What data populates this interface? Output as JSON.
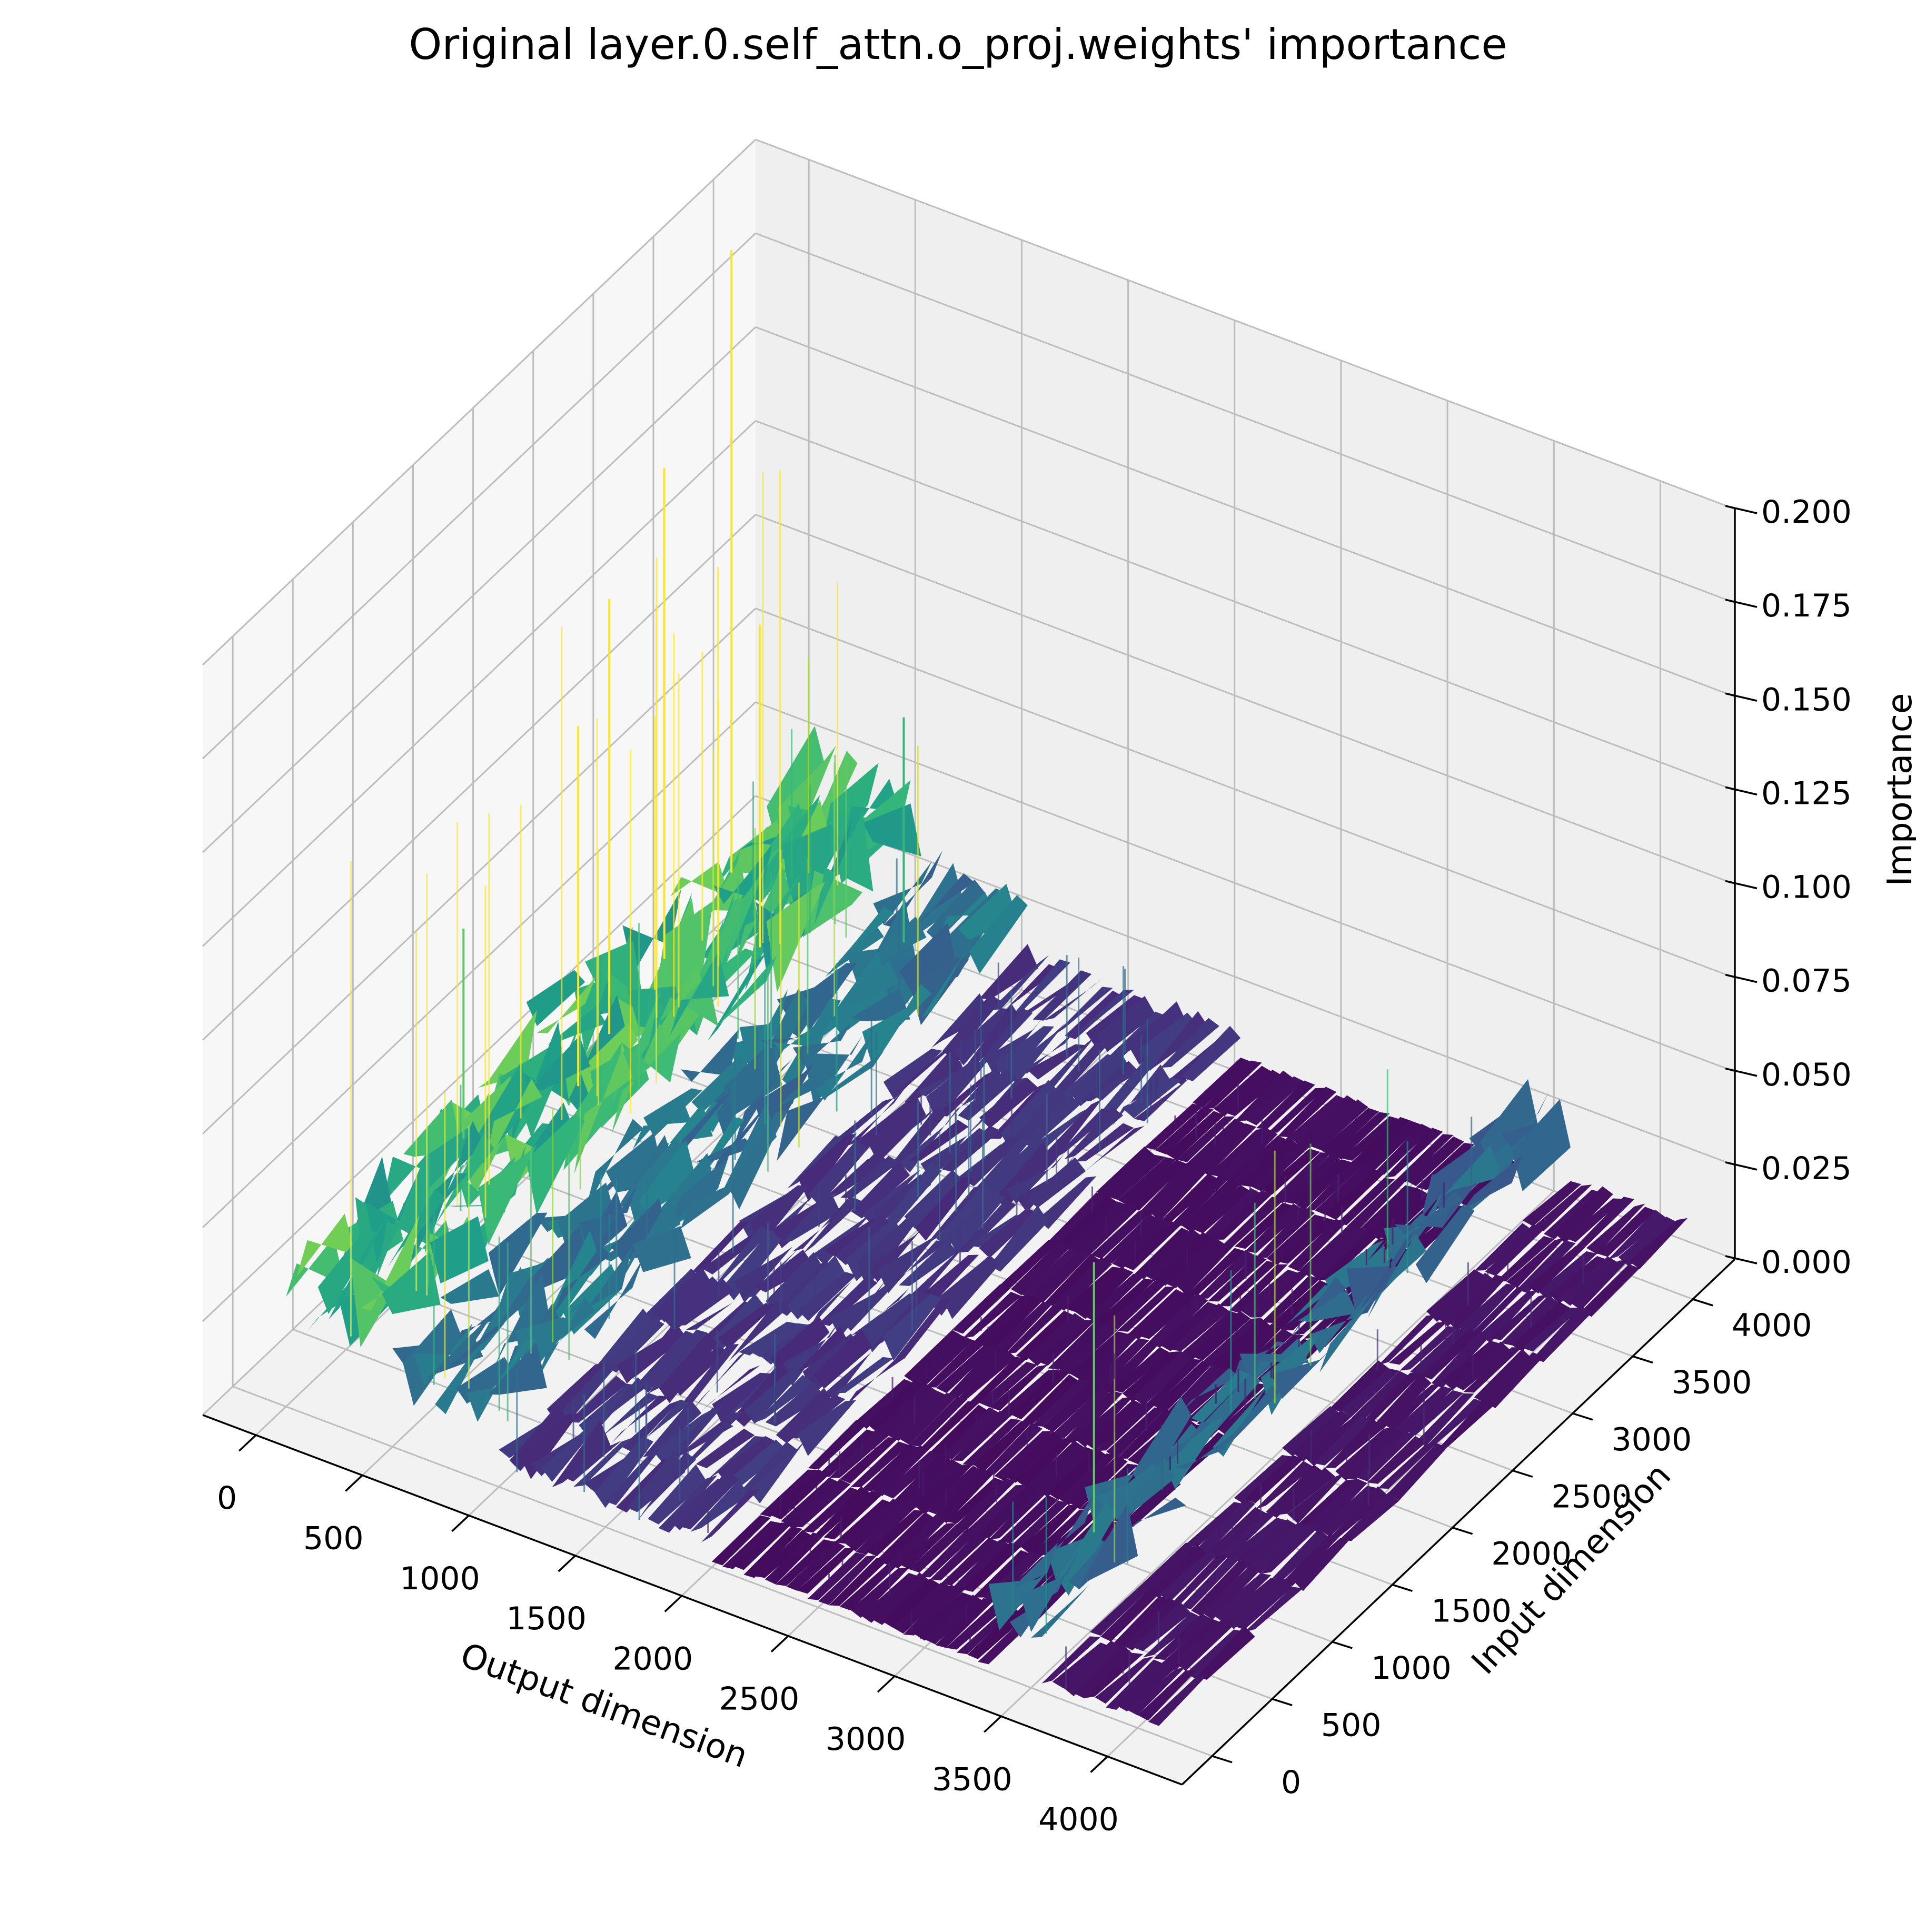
{
  "chart_data": {
    "type": "surface",
    "title": "Original layer.0.self_attn.o_proj.weights' importance",
    "xlabel": "Output dimension",
    "ylabel": "Input dimension",
    "zlabel": "Importance",
    "xlim": [
      -250,
      4350
    ],
    "ylim": [
      -250,
      4350
    ],
    "zlim": [
      0,
      0.2
    ],
    "xticks": [
      0,
      500,
      1000,
      1500,
      2000,
      2500,
      3000,
      3500,
      4000
    ],
    "yticks": [
      0,
      500,
      1000,
      1500,
      2000,
      2500,
      3000,
      3500,
      4000
    ],
    "zticks": [
      "0.000",
      "0.025",
      "0.050",
      "0.075",
      "0.100",
      "0.125",
      "0.150",
      "0.175",
      "0.200"
    ],
    "colormap": "viridis",
    "grid": true,
    "bands": [
      {
        "x": [
          0,
          500
        ],
        "level": 0.034
      },
      {
        "x": [
          500,
          1000
        ],
        "level": 0.02
      },
      {
        "x": [
          1000,
          2000
        ],
        "level": 0.008
      },
      {
        "x": [
          2000,
          3300
        ],
        "level": 0.002
      },
      {
        "x": [
          3300,
          3550
        ],
        "level": 0.018
      },
      {
        "x": [
          3550,
          4100
        ],
        "level": 0.003
      }
    ],
    "peaks": [
      {
        "x": 60,
        "y": 3600,
        "z": 0.2
      },
      {
        "x": 140,
        "y": 2900,
        "z": 0.165
      },
      {
        "x": 220,
        "y": 2300,
        "z": 0.15
      },
      {
        "x": 300,
        "y": 1900,
        "z": 0.13
      },
      {
        "x": 420,
        "y": 3200,
        "z": 0.12
      },
      {
        "x": 100,
        "y": 1300,
        "z": 0.09
      },
      {
        "x": 700,
        "y": 3900,
        "z": 0.08
      },
      {
        "x": 3400,
        "y": 700,
        "z": 0.09
      }
    ]
  }
}
